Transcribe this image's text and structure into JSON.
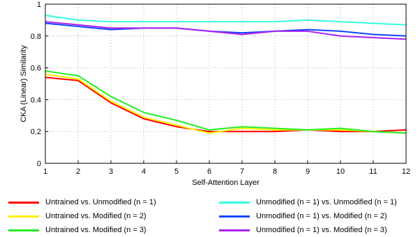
{
  "chart_data": {
    "type": "line",
    "title": "",
    "xlabel": "Self-Attention Layer",
    "ylabel": "CKA (Linear) Similarity",
    "xlim": [
      1,
      12
    ],
    "ylim": [
      0,
      1
    ],
    "x": [
      1,
      2,
      3,
      4,
      5,
      6,
      7,
      8,
      9,
      10,
      11,
      12
    ],
    "x_ticks": [
      "1",
      "2",
      "3",
      "4",
      "5",
      "6",
      "7",
      "8",
      "9",
      "10",
      "11",
      "12"
    ],
    "y_ticks": [
      "0",
      "0.2",
      "0.4",
      "0.6",
      "0.8",
      "1"
    ],
    "y_tick_values": [
      0,
      0.2,
      0.4,
      0.6,
      0.8,
      1
    ],
    "grid": "dotted",
    "legend_position": "below",
    "series": [
      {
        "name": "Untrained vs. Unmodified (n = 1)",
        "color": "#ff0000",
        "values": [
          0.54,
          0.52,
          0.38,
          0.28,
          0.23,
          0.2,
          0.2,
          0.2,
          0.21,
          0.2,
          0.2,
          0.21
        ]
      },
      {
        "name": "Untrained vs. Modified (n = 2)",
        "color": "#ffee00",
        "values": [
          0.56,
          0.53,
          0.39,
          0.29,
          0.24,
          0.19,
          0.22,
          0.21,
          0.21,
          0.21,
          0.2,
          0.19
        ]
      },
      {
        "name": "Untrained vs. Modified (n = 3)",
        "color": "#22ee22",
        "values": [
          0.58,
          0.55,
          0.42,
          0.32,
          0.27,
          0.21,
          0.23,
          0.22,
          0.21,
          0.22,
          0.2,
          0.19
        ]
      },
      {
        "name": "Unmodified (n = 1) vs. Unmodified (n = 1)",
        "color": "#33ffdd",
        "values": [
          0.93,
          0.9,
          0.89,
          0.89,
          0.89,
          0.89,
          0.89,
          0.89,
          0.9,
          0.89,
          0.88,
          0.87
        ]
      },
      {
        "name": "Unmodified (n = 1) vs. Modified (n = 2)",
        "color": "#1144ff",
        "values": [
          0.88,
          0.86,
          0.84,
          0.85,
          0.85,
          0.83,
          0.82,
          0.83,
          0.84,
          0.83,
          0.81,
          0.8
        ]
      },
      {
        "name": "Unmodified (n = 1) vs. Modified (n = 3)",
        "color": "#aa22ee",
        "values": [
          0.89,
          0.87,
          0.85,
          0.85,
          0.85,
          0.83,
          0.81,
          0.83,
          0.83,
          0.8,
          0.79,
          0.78
        ]
      }
    ]
  }
}
